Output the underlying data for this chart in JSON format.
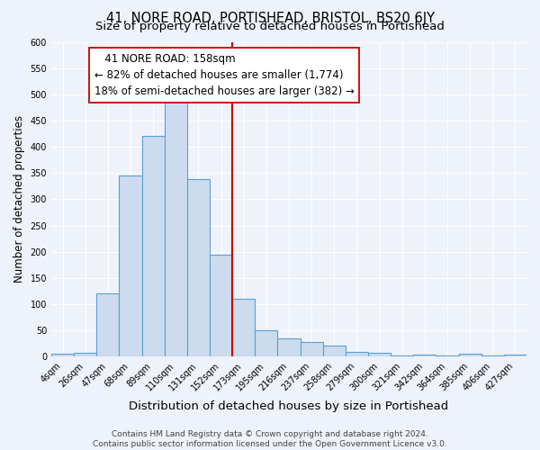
{
  "title": "41, NORE ROAD, PORTISHEAD, BRISTOL, BS20 6JY",
  "subtitle": "Size of property relative to detached houses in Portishead",
  "xlabel": "Distribution of detached houses by size in Portishead",
  "ylabel": "Number of detached properties",
  "bar_labels": [
    "4sqm",
    "26sqm",
    "47sqm",
    "68sqm",
    "89sqm",
    "110sqm",
    "131sqm",
    "152sqm",
    "173sqm",
    "195sqm",
    "216sqm",
    "237sqm",
    "258sqm",
    "279sqm",
    "300sqm",
    "321sqm",
    "342sqm",
    "364sqm",
    "385sqm",
    "406sqm",
    "427sqm"
  ],
  "bar_values": [
    5,
    7,
    120,
    345,
    420,
    490,
    338,
    195,
    110,
    50,
    35,
    28,
    22,
    10,
    7,
    3,
    4,
    2,
    5,
    3,
    4
  ],
  "bar_color": "#ccdcee",
  "bar_edge_color": "#5a9fd4",
  "property_label": "41 NORE ROAD: 158sqm",
  "pct_smaller": 82,
  "n_smaller": 1774,
  "pct_larger": 18,
  "n_larger": 382,
  "vline_x_index": 7.5,
  "footer_line1": "Contains HM Land Registry data © Crown copyright and database right 2024.",
  "footer_line2": "Contains public sector information licensed under the Open Government Licence v3.0.",
  "ylim": [
    0,
    600
  ],
  "yticks": [
    0,
    50,
    100,
    150,
    200,
    250,
    300,
    350,
    400,
    450,
    500,
    550,
    600
  ],
  "background_color": "#eef2fa",
  "grid_color": "#ffffff",
  "vline_color": "#cc0000",
  "box_edge_color": "#cc0000",
  "box_fill_color": "#ffffff",
  "title_fontsize": 10.5,
  "subtitle_fontsize": 9.5,
  "xlabel_fontsize": 9.5,
  "ylabel_fontsize": 8.5,
  "tick_fontsize": 7,
  "annotation_fontsize": 8.5,
  "footer_fontsize": 6.5
}
